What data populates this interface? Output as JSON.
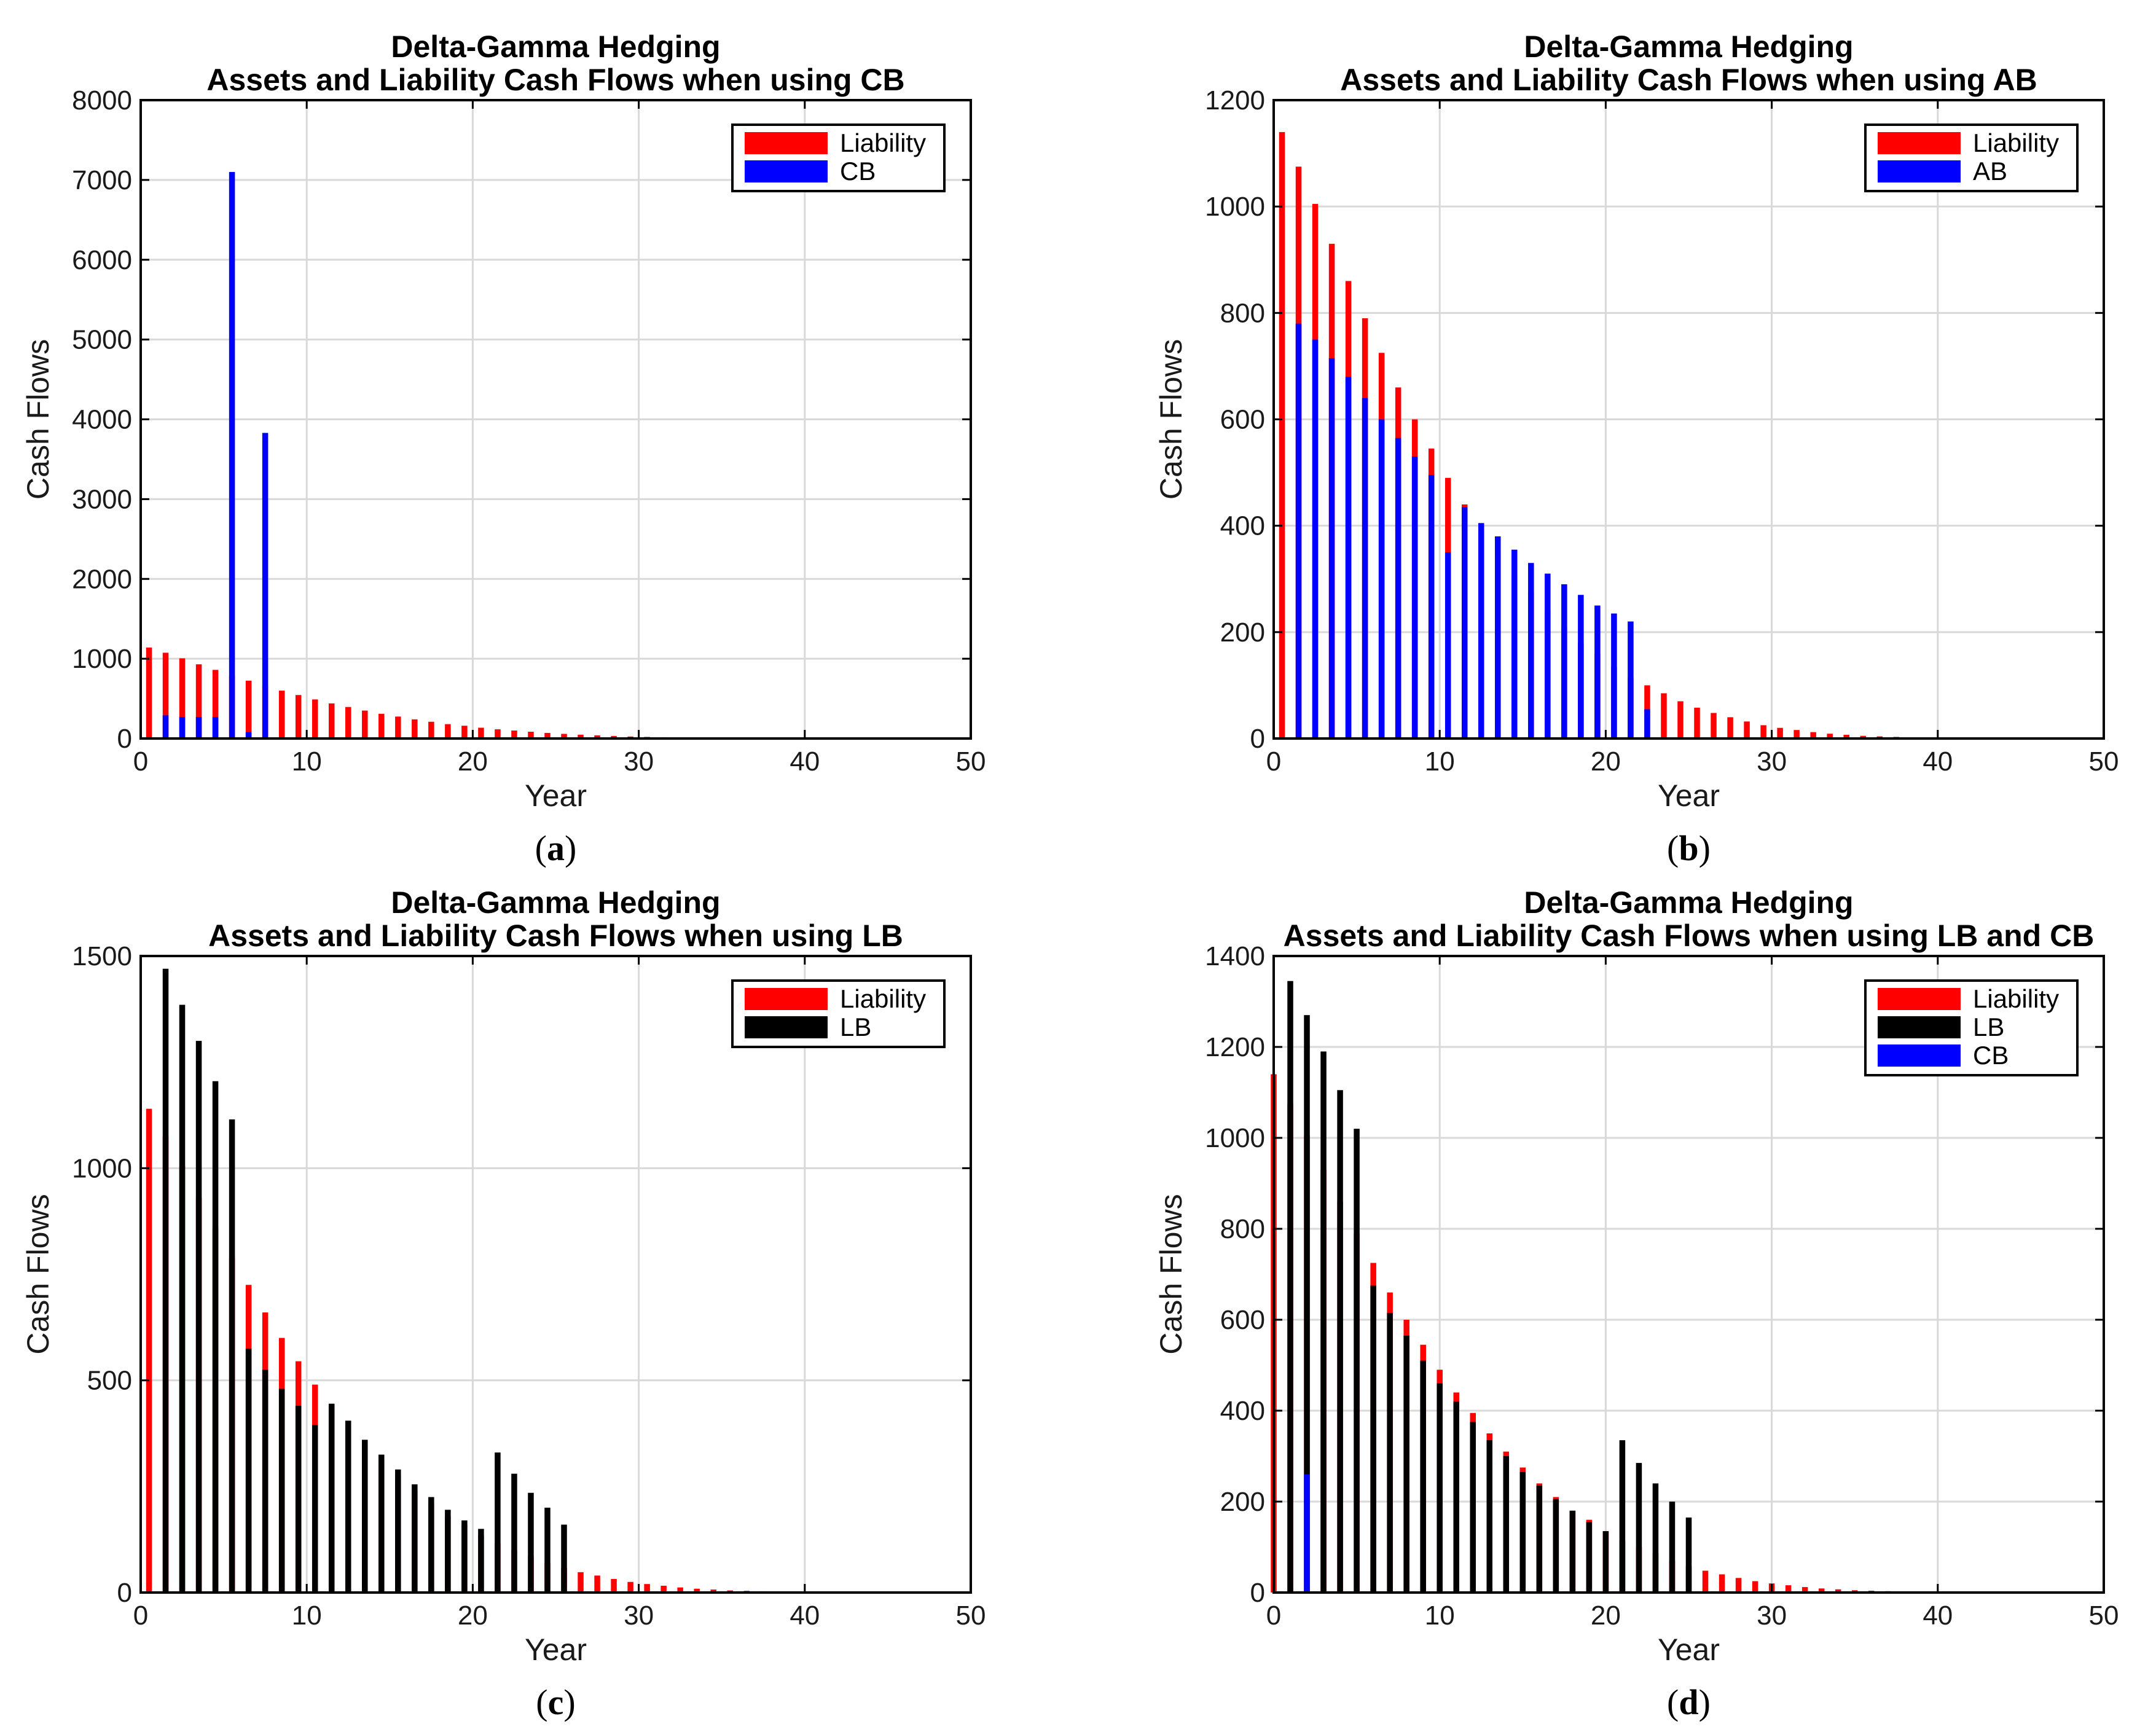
{
  "colors": {
    "Liability": "#ff0000",
    "CB": "#0000ff",
    "AB": "#0000ff",
    "LB": "#000000"
  },
  "chart_data": [
    {
      "type": "bar",
      "caption": "a",
      "title": [
        "Delta-Gamma Hedging",
        "Assets and Liability Cash Flows when using CB"
      ],
      "xlabel": "Year",
      "ylabel": "Cash Flows",
      "xlim": [
        0,
        50
      ],
      "ylim": [
        0,
        8000
      ],
      "xticks": [
        0,
        10,
        20,
        30,
        40,
        50
      ],
      "yticks": [
        0,
        1000,
        2000,
        3000,
        4000,
        5000,
        6000,
        7000,
        8000
      ],
      "grid": true,
      "legend_position": "top-right",
      "series": [
        {
          "name": "Liability",
          "color": "#ff0000",
          "x": [
            1,
            2,
            3,
            4,
            5,
            6,
            7,
            8,
            9,
            10,
            11,
            12,
            13,
            14,
            15,
            16,
            17,
            18,
            19,
            20,
            21,
            22,
            23,
            24,
            25,
            26,
            27,
            28,
            29,
            30,
            31,
            32,
            33,
            34,
            35,
            36,
            37,
            38,
            39,
            40
          ],
          "values": [
            1140,
            1075,
            1005,
            930,
            860,
            790,
            725,
            660,
            600,
            545,
            490,
            440,
            395,
            350,
            310,
            275,
            240,
            210,
            180,
            160,
            135,
            115,
            100,
            85,
            70,
            58,
            48,
            40,
            32,
            25,
            20,
            16,
            12,
            9,
            7,
            5,
            4,
            3,
            2,
            1
          ]
        },
        {
          "name": "CB",
          "color": "#0000ff",
          "x": [
            1,
            2,
            3,
            4,
            5,
            6,
            7
          ],
          "values": [
            290,
            270,
            270,
            270,
            7100,
            80,
            3830
          ]
        }
      ]
    },
    {
      "type": "bar",
      "caption": "b",
      "title": [
        "Delta-Gamma Hedging",
        "Assets and Liability Cash Flows when using AB"
      ],
      "xlabel": "Year",
      "ylabel": "Cash Flows",
      "xlim": [
        0,
        50
      ],
      "ylim": [
        0,
        1200
      ],
      "xticks": [
        0,
        10,
        20,
        30,
        40,
        50
      ],
      "yticks": [
        0,
        200,
        400,
        600,
        800,
        1000,
        1200
      ],
      "grid": true,
      "legend_position": "top-right",
      "series": [
        {
          "name": "Liability",
          "color": "#ff0000",
          "x": [
            1,
            2,
            3,
            4,
            5,
            6,
            7,
            8,
            9,
            10,
            11,
            12,
            13,
            14,
            15,
            16,
            17,
            18,
            19,
            20,
            21,
            22,
            23,
            24,
            25,
            26,
            27,
            28,
            29,
            30,
            31,
            32,
            33,
            34,
            35,
            36,
            37,
            38,
            39,
            40
          ],
          "values": [
            1140,
            1075,
            1005,
            930,
            860,
            790,
            725,
            660,
            600,
            545,
            490,
            440,
            395,
            350,
            310,
            275,
            240,
            210,
            180,
            160,
            135,
            115,
            100,
            85,
            70,
            58,
            48,
            40,
            32,
            25,
            20,
            16,
            12,
            9,
            7,
            5,
            4,
            3,
            2,
            1
          ]
        },
        {
          "name": "AB",
          "color": "#0000ff",
          "x": [
            1,
            2,
            3,
            4,
            5,
            6,
            7,
            8,
            9,
            10,
            11,
            12,
            13,
            14,
            15,
            16,
            17,
            18,
            19,
            20,
            21,
            22
          ],
          "values": [
            780,
            750,
            715,
            680,
            640,
            600,
            565,
            530,
            495,
            350,
            435,
            405,
            380,
            355,
            330,
            310,
            290,
            270,
            250,
            235,
            220,
            55
          ]
        }
      ]
    },
    {
      "type": "bar",
      "caption": "c",
      "title": [
        "Delta-Gamma Hedging",
        "Assets and Liability Cash Flows when using LB"
      ],
      "xlabel": "Year",
      "ylabel": "Cash Flows",
      "xlim": [
        0,
        50
      ],
      "ylim": [
        0,
        1500
      ],
      "xticks": [
        0,
        10,
        20,
        30,
        40,
        50
      ],
      "yticks": [
        0,
        500,
        1000,
        1500
      ],
      "grid": true,
      "legend_position": "top-right",
      "series": [
        {
          "name": "Liability",
          "color": "#ff0000",
          "x": [
            1,
            2,
            3,
            4,
            5,
            6,
            7,
            8,
            9,
            10,
            11,
            12,
            13,
            14,
            15,
            16,
            17,
            18,
            19,
            20,
            21,
            22,
            23,
            24,
            25,
            26,
            27,
            28,
            29,
            30,
            31,
            32,
            33,
            34,
            35,
            36,
            37,
            38,
            39,
            40
          ],
          "values": [
            1140,
            1075,
            1005,
            930,
            860,
            790,
            725,
            660,
            600,
            545,
            490,
            440,
            395,
            350,
            310,
            275,
            240,
            210,
            180,
            160,
            135,
            115,
            100,
            85,
            70,
            58,
            48,
            40,
            32,
            25,
            20,
            16,
            12,
            9,
            7,
            5,
            4,
            3,
            2,
            1
          ]
        },
        {
          "name": "LB",
          "color": "#000000",
          "x": [
            1,
            2,
            3,
            4,
            5,
            6,
            7,
            8,
            9,
            10,
            11,
            12,
            13,
            14,
            15,
            16,
            17,
            18,
            19,
            20,
            21,
            22,
            23,
            24,
            25
          ],
          "values": [
            1470,
            1385,
            1300,
            1205,
            1115,
            575,
            525,
            480,
            440,
            395,
            445,
            405,
            360,
            325,
            290,
            255,
            225,
            195,
            170,
            150,
            330,
            280,
            235,
            200,
            160
          ]
        }
      ]
    },
    {
      "type": "bar",
      "caption": "d",
      "title": [
        "Delta-Gamma Hedging",
        "Assets and Liability Cash Flows when using LB and CB"
      ],
      "xlabel": "Year",
      "ylabel": "Cash Flows",
      "xlim": [
        0,
        50
      ],
      "ylim": [
        0,
        1400
      ],
      "xticks": [
        0,
        10,
        20,
        30,
        40,
        50
      ],
      "yticks": [
        0,
        200,
        400,
        600,
        800,
        1000,
        1200,
        1400
      ],
      "grid": true,
      "legend_position": "top-right",
      "series": [
        {
          "name": "Liability",
          "color": "#ff0000",
          "x": [
            1,
            2,
            3,
            4,
            5,
            6,
            7,
            8,
            9,
            10,
            11,
            12,
            13,
            14,
            15,
            16,
            17,
            18,
            19,
            20,
            21,
            22,
            23,
            24,
            25,
            26,
            27,
            28,
            29,
            30,
            31,
            32,
            33,
            34,
            35,
            36,
            37,
            38,
            39,
            40
          ],
          "values": [
            1140,
            1075,
            1005,
            930,
            860,
            790,
            725,
            660,
            600,
            545,
            490,
            440,
            395,
            350,
            310,
            275,
            240,
            210,
            180,
            160,
            135,
            115,
            100,
            85,
            70,
            58,
            48,
            40,
            32,
            25,
            20,
            16,
            12,
            9,
            7,
            5,
            4,
            3,
            2,
            1
          ]
        },
        {
          "name": "LB",
          "color": "#000000",
          "x": [
            1,
            2,
            3,
            4,
            5,
            6,
            7,
            8,
            9,
            10,
            11,
            12,
            13,
            14,
            15,
            16,
            17,
            18,
            19,
            20,
            21,
            22,
            23,
            24,
            25
          ],
          "values": [
            1345,
            1270,
            1190,
            1105,
            1020,
            675,
            615,
            565,
            510,
            460,
            420,
            375,
            335,
            300,
            265,
            235,
            205,
            180,
            155,
            135,
            335,
            285,
            240,
            200,
            165
          ]
        },
        {
          "name": "CB",
          "color": "#0000ff",
          "x": [
            1
          ],
          "values": [
            260
          ]
        }
      ]
    }
  ]
}
